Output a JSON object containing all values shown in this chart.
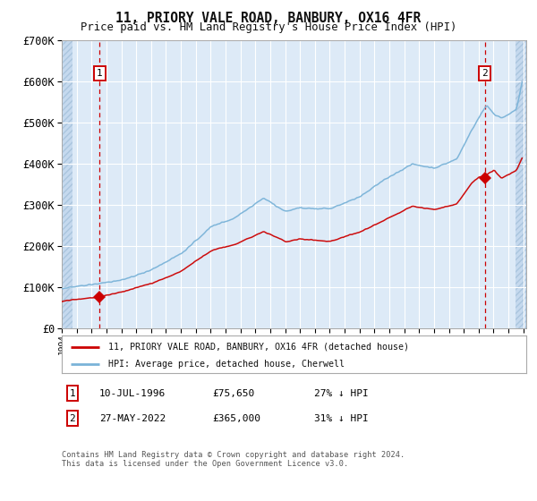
{
  "title": "11, PRIORY VALE ROAD, BANBURY, OX16 4FR",
  "subtitle": "Price paid vs. HM Land Registry's House Price Index (HPI)",
  "ylim": [
    0,
    700000
  ],
  "yticks": [
    0,
    100000,
    200000,
    300000,
    400000,
    500000,
    600000,
    700000
  ],
  "hpi_color": "#7ab3d8",
  "price_color": "#cc0000",
  "background_color": "#ddeaf7",
  "hatch_bg_color": "#c5d9ee",
  "grid_color": "#ffffff",
  "legend_label_price": "11, PRIORY VALE ROAD, BANBURY, OX16 4FR (detached house)",
  "legend_label_hpi": "HPI: Average price, detached house, Cherwell",
  "annotation1_date": "10-JUL-1996",
  "annotation1_price": "£75,650",
  "annotation1_pct": "27% ↓ HPI",
  "annotation1_year": 1996.53,
  "annotation1_value": 75650,
  "annotation2_date": "27-MAY-2022",
  "annotation2_price": "£365,000",
  "annotation2_pct": "31% ↓ HPI",
  "annotation2_year": 2022.41,
  "annotation2_value": 365000,
  "footnote": "Contains HM Land Registry data © Crown copyright and database right 2024.\nThis data is licensed under the Open Government Licence v3.0.",
  "start_year": 1994.0,
  "end_year": 2025.2
}
